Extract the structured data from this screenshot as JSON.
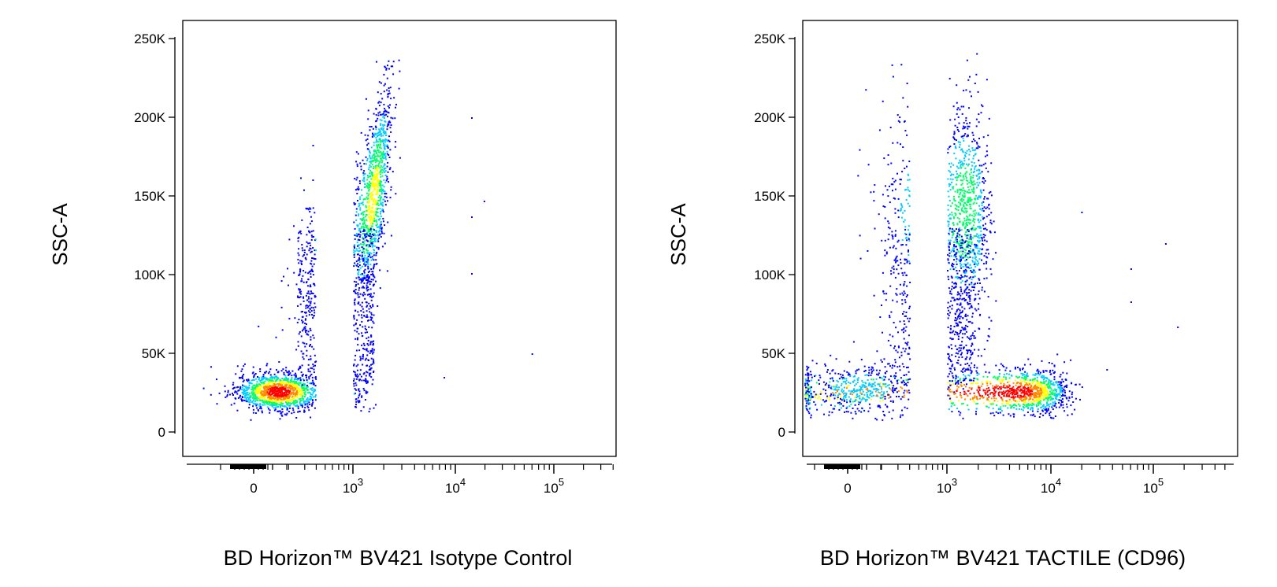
{
  "chart_data": [
    {
      "type": "scatter",
      "style": "pseudocolor density dot plot",
      "x_axis": {
        "scale": "biexponential",
        "label": "BD Horizon™ BV421 Isotype Control",
        "tick_labels": [
          {
            "base": "0",
            "exp": ""
          },
          {
            "base": "10",
            "exp": "3"
          },
          {
            "base": "10",
            "exp": "4"
          },
          {
            "base": "10",
            "exp": "5"
          }
        ],
        "range": [
          -1000,
          200000
        ]
      },
      "y_axis": {
        "scale": "linear",
        "label": "SSC-A",
        "tick_labels": [
          "0",
          "50K",
          "100K",
          "150K",
          "200K",
          "250K"
        ],
        "range": [
          0,
          260000
        ]
      },
      "density_colors": [
        "#0000ff",
        "#00ccff",
        "#00ff66",
        "#ffff00",
        "#ff0000"
      ],
      "populations": [
        {
          "x_center": 400,
          "x_spread": 350,
          "y_center": 26000,
          "y_spread": 6000,
          "count": 1300,
          "peak": "red"
        },
        {
          "x_center": 1400,
          "x_spread": 350,
          "y_center": 150000,
          "y_spread": 35000,
          "count": 1100,
          "peak": "green"
        }
      ],
      "outliers": [
        {
          "x": 15000,
          "y": 200000
        },
        {
          "x": 20000,
          "y": 147000
        },
        {
          "x": 15000,
          "y": 137000
        },
        {
          "x": 15000,
          "y": 101000
        },
        {
          "x": 60000,
          "y": 50000
        },
        {
          "x": 8000,
          "y": 35000
        }
      ]
    },
    {
      "type": "scatter",
      "style": "pseudocolor density dot plot",
      "x_axis": {
        "scale": "biexponential",
        "label": "BD Horizon™ BV421  TACTILE (CD96)",
        "tick_labels": [
          {
            "base": "0",
            "exp": ""
          },
          {
            "base": "10",
            "exp": "3"
          },
          {
            "base": "10",
            "exp": "4"
          },
          {
            "base": "10",
            "exp": "5"
          }
        ],
        "range": [
          -1000,
          200000
        ]
      },
      "y_axis": {
        "scale": "linear",
        "label": "SSC-A",
        "tick_labels": [
          "0",
          "50K",
          "100K",
          "150K",
          "200K",
          "250K"
        ],
        "range": [
          0,
          260000
        ]
      },
      "density_colors": [
        "#0000ff",
        "#00ccff",
        "#00ff66",
        "#ffff00",
        "#ff0000"
      ],
      "populations": [
        {
          "x_center": 4000,
          "x_spread": 5000,
          "y_center": 26000,
          "y_spread": 7000,
          "count": 1400,
          "peak": "red"
        },
        {
          "x_center": 1500,
          "x_spread": 500,
          "y_center": 140000,
          "y_spread": 35000,
          "count": 1000,
          "peak": "cyan"
        },
        {
          "x_center": 200,
          "x_spread": 500,
          "y_center": 28000,
          "y_spread": 9000,
          "count": 400,
          "peak": "blue"
        }
      ],
      "outliers": [
        {
          "x": 20000,
          "y": 140000
        },
        {
          "x": 130000,
          "y": 120000
        },
        {
          "x": 60000,
          "y": 104000
        },
        {
          "x": 60000,
          "y": 83000
        },
        {
          "x": 170000,
          "y": 67000
        },
        {
          "x": 35000,
          "y": 40000
        }
      ]
    }
  ]
}
